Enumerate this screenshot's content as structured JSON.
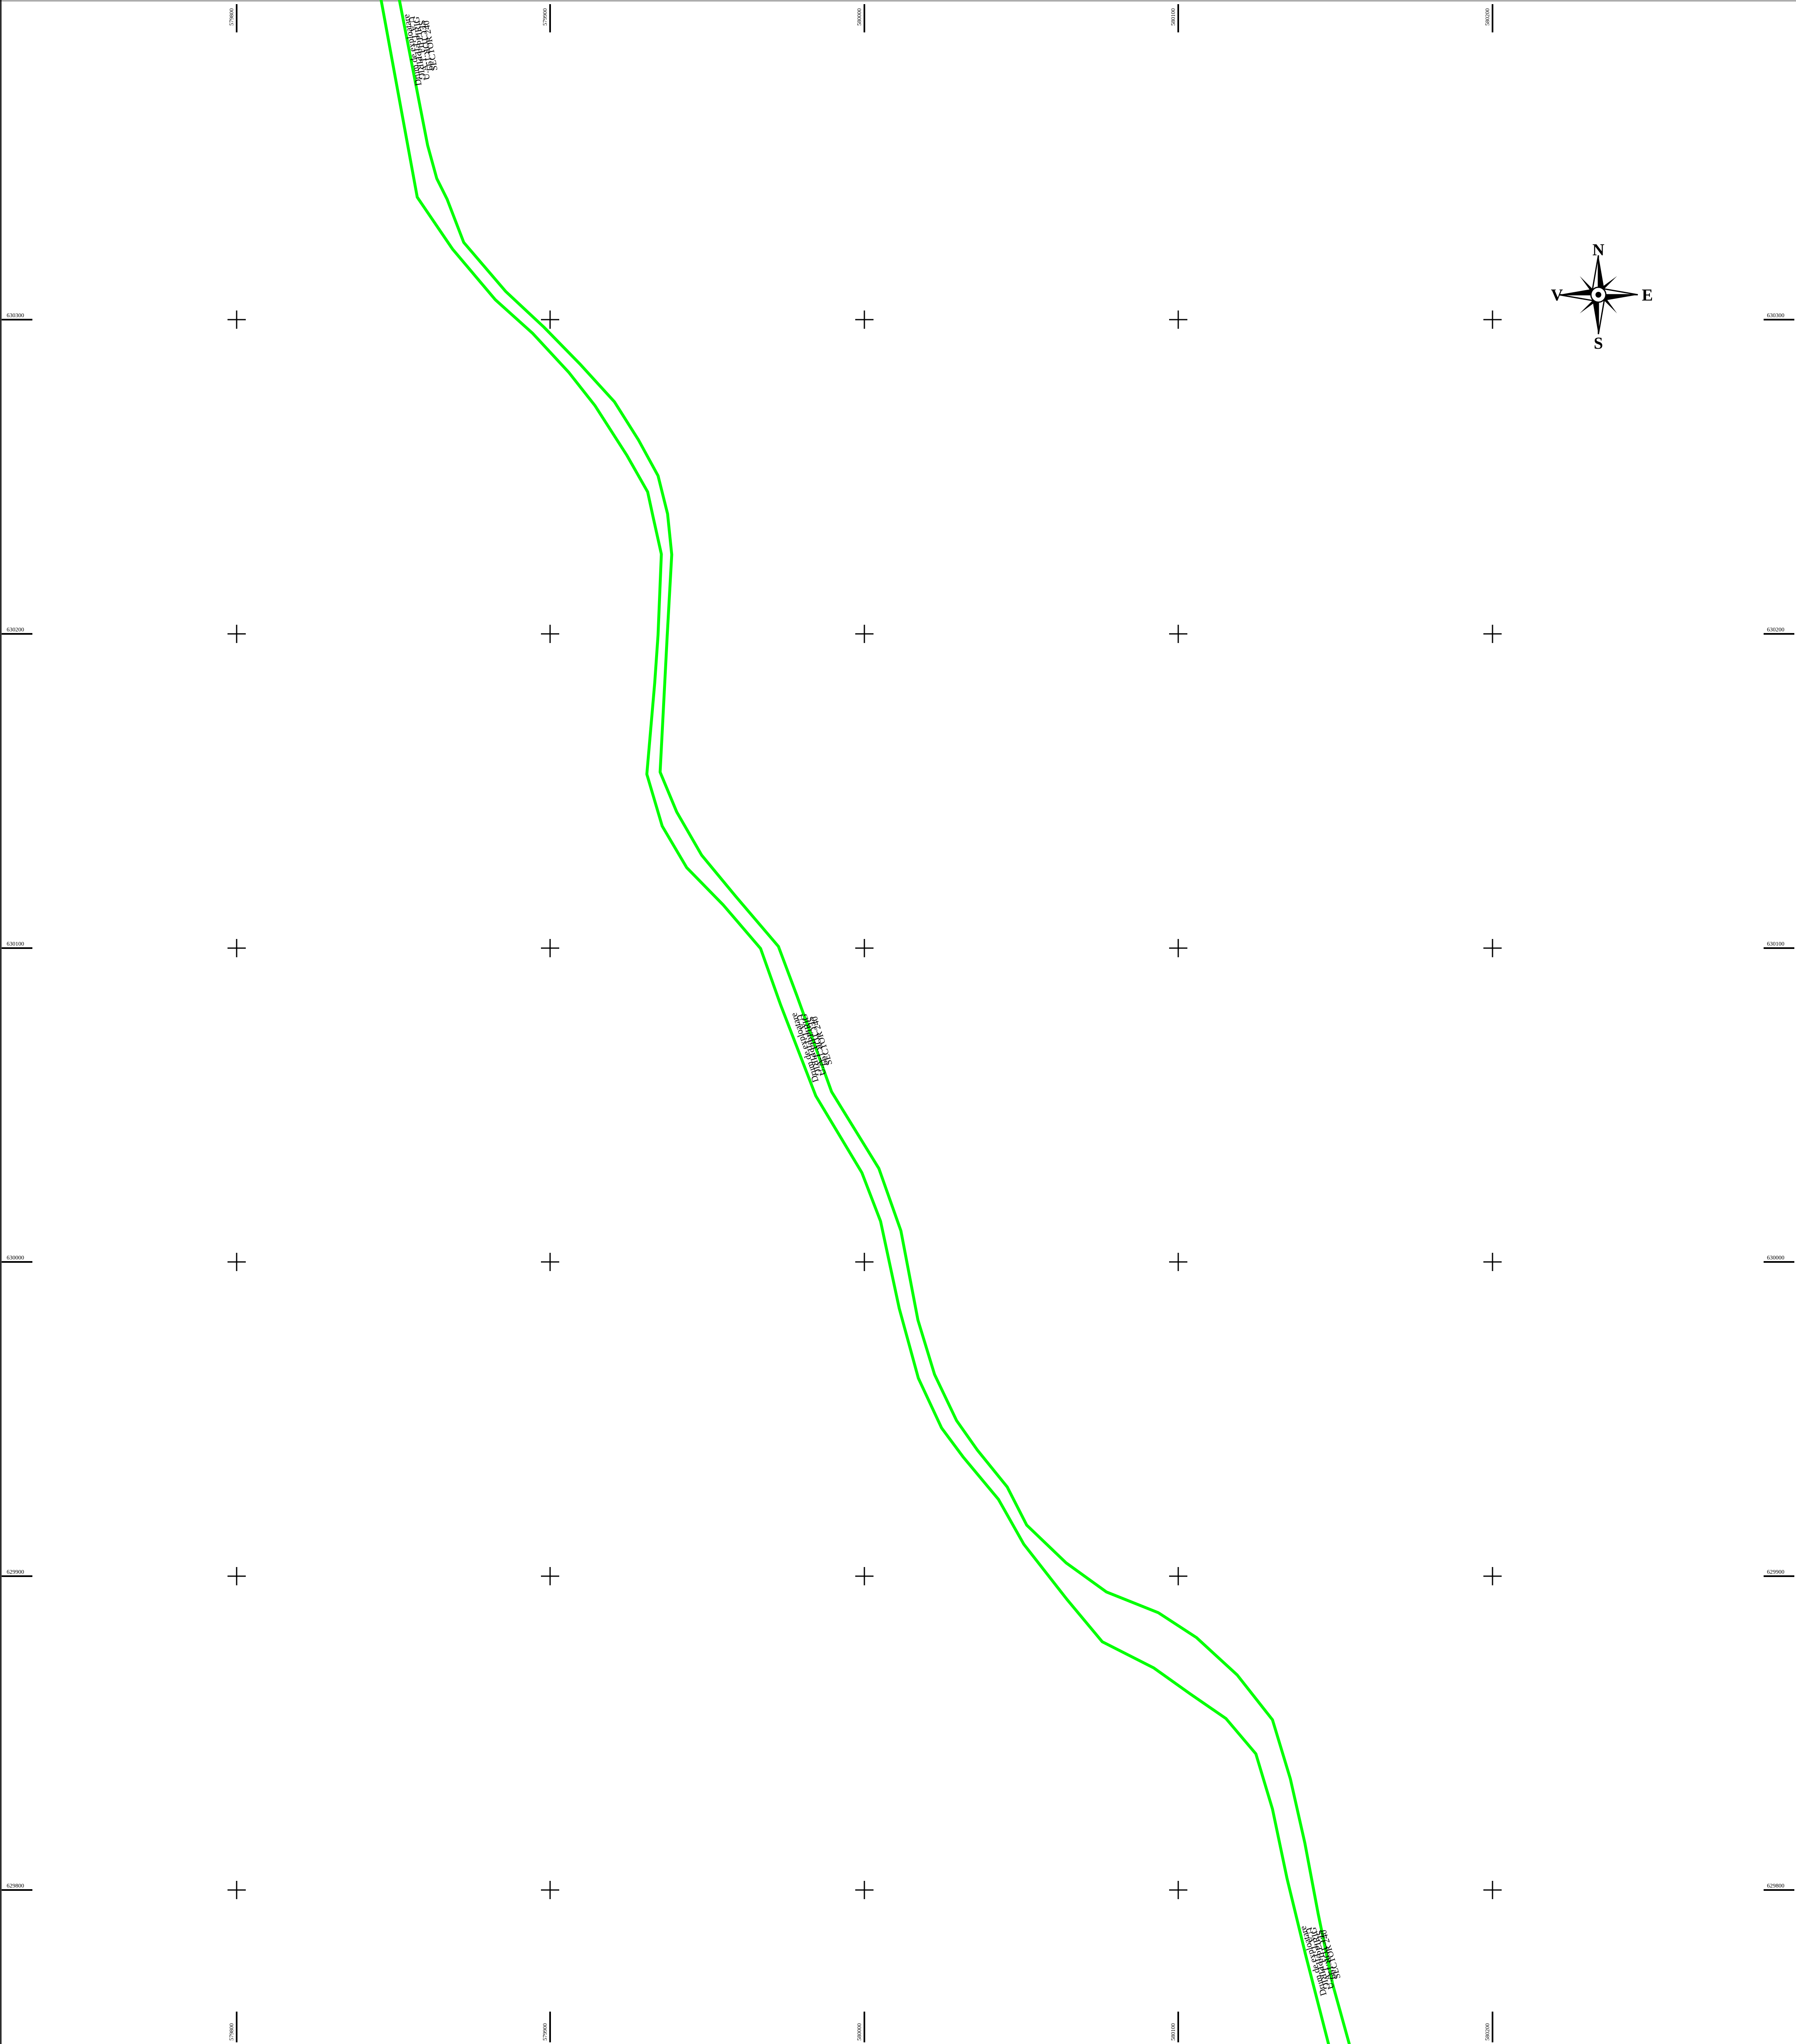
{
  "colors": {
    "road_edge": "#00ff00",
    "grid": "#000000",
    "background": "#ffffff"
  },
  "grid": {
    "x_labels": [
      "579800",
      "579900",
      "580000",
      "580100",
      "580200"
    ],
    "y_labels": [
      "630300",
      "630200",
      "630100",
      "630000",
      "629900",
      "629800"
    ]
  },
  "compass": {
    "icon": "compass-rose-icon",
    "north": "N",
    "south": "S",
    "east": "E",
    "west": "V"
  },
  "road_labels": [
    {
      "top_side": [
        "SECTOR 199",
        "U.A.T. FIPPIRIG"
      ],
      "bottom_side": [
        "Drum de exploatare",
        "U.A.T. FIPPIRIG",
        "SECTOR 240"
      ]
    },
    {
      "top_side": [
        "SECTOR 199",
        "U.A.T. FIPPIRIG"
      ],
      "bottom_side": [
        "Drum de exploatare",
        "U.A.T. FIPPIRIG",
        "SECTOR 240"
      ]
    },
    {
      "top_side": [
        "SECTOR 199",
        "U.A.T. FIPPIRIG"
      ],
      "bottom_side": [
        "Drum de exploatare",
        "U.A.T. FIPPIRIG",
        "SECTOR 240"
      ]
    }
  ]
}
